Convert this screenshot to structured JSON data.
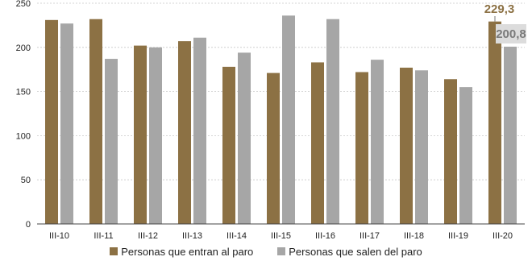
{
  "chart_data": {
    "type": "bar",
    "categories": [
      "III-10",
      "III-11",
      "III-12",
      "III-13",
      "III-14",
      "III-15",
      "III-16",
      "III-17",
      "III-18",
      "III-19",
      "III-20"
    ],
    "series": [
      {
        "name": "Personas que entran al paro",
        "color": "#8c7144",
        "values": [
          231,
          232,
          202,
          207,
          178,
          171,
          183,
          172,
          177,
          164,
          229.3
        ]
      },
      {
        "name": "Personas que salen del paro",
        "color": "#a6a6a6",
        "values": [
          227,
          187,
          200,
          211,
          194,
          236,
          232,
          186,
          174,
          155,
          200.8
        ]
      }
    ],
    "ylim": [
      0,
      250
    ],
    "yticks": [
      0,
      50,
      100,
      150,
      200,
      250
    ],
    "grid": true,
    "legend_position": "bottom",
    "annotations": [
      {
        "series": 0,
        "index": 10,
        "text": "229,3"
      },
      {
        "series": 1,
        "index": 10,
        "text": "200,8"
      }
    ]
  }
}
